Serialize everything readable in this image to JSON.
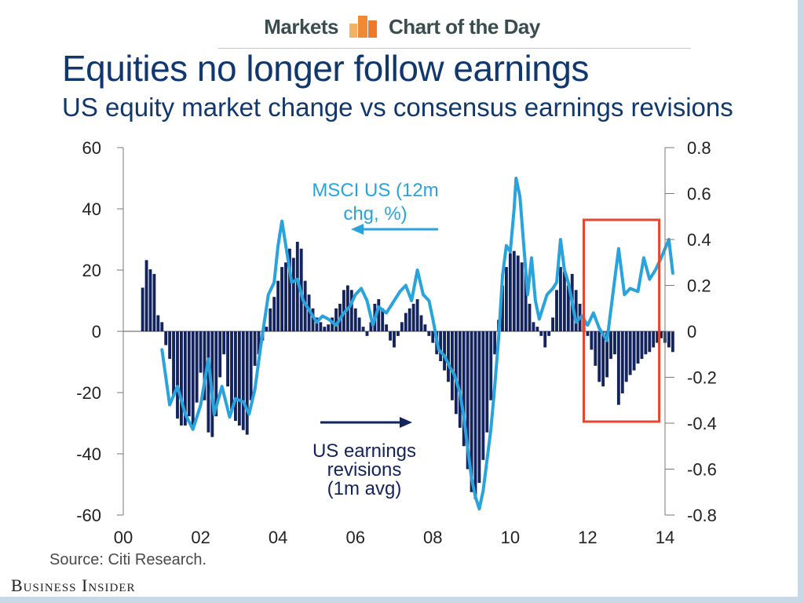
{
  "header": {
    "section": "Markets",
    "feature": "Chart of the Day",
    "title": "Equities no longer follow earnings",
    "subtitle": "US equity market change vs consensus earnings revisions"
  },
  "footer": {
    "source": "Source: Citi Research.",
    "brand": "Business Insider"
  },
  "colors": {
    "title": "#10376e",
    "line": "#29a3dc",
    "bars": "#12235e",
    "highlight": "#e8452e"
  },
  "chart_data": {
    "type": "line",
    "x_ticks": [
      "00",
      "02",
      "04",
      "06",
      "08",
      "10",
      "12",
      "14"
    ],
    "xlim": [
      2000,
      2014
    ],
    "y_left": {
      "ticks": [
        "60",
        "40",
        "20",
        "0",
        "-20",
        "-40",
        "-60"
      ],
      "lim": [
        -60,
        60
      ]
    },
    "y_right": {
      "ticks": [
        "0.8",
        "0.6",
        "0.4",
        "0.2",
        "0",
        "-0.2",
        "-0.4",
        "-0.6",
        "-0.8"
      ],
      "lim": [
        -0.8,
        0.8
      ]
    },
    "annotations": {
      "msci": [
        "MSCI US (12m",
        "chg, %)"
      ],
      "earnings": [
        "US earnings",
        "revisions",
        "(1m avg)"
      ]
    },
    "highlight_range": {
      "x": [
        2011.9,
        2013.85
      ]
    },
    "series": [
      {
        "name": "MSCI US (12m chg, %)",
        "axis": "left",
        "type": "line",
        "points": [
          [
            2001.0,
            -6
          ],
          [
            2001.2,
            -24
          ],
          [
            2001.4,
            -18
          ],
          [
            2001.6,
            -27
          ],
          [
            2001.8,
            -32
          ],
          [
            2002.0,
            -24
          ],
          [
            2002.2,
            -9
          ],
          [
            2002.35,
            -27
          ],
          [
            2002.55,
            -18
          ],
          [
            2002.75,
            -28
          ],
          [
            2002.9,
            -22
          ],
          [
            2003.1,
            -23
          ],
          [
            2003.25,
            -27
          ],
          [
            2003.4,
            -19
          ],
          [
            2003.55,
            -5
          ],
          [
            2003.75,
            12
          ],
          [
            2003.9,
            16
          ],
          [
            2004.0,
            28
          ],
          [
            2004.1,
            36
          ],
          [
            2004.2,
            28
          ],
          [
            2004.35,
            16
          ],
          [
            2004.5,
            17
          ],
          [
            2004.65,
            10
          ],
          [
            2004.85,
            6
          ],
          [
            2005.0,
            3
          ],
          [
            2005.15,
            5
          ],
          [
            2005.3,
            4
          ],
          [
            2005.5,
            2
          ],
          [
            2005.7,
            6
          ],
          [
            2005.85,
            8
          ],
          [
            2006.0,
            12
          ],
          [
            2006.15,
            14
          ],
          [
            2006.3,
            10
          ],
          [
            2006.45,
            2
          ],
          [
            2006.6,
            8
          ],
          [
            2006.8,
            6
          ],
          [
            2006.95,
            9
          ],
          [
            2007.15,
            13
          ],
          [
            2007.3,
            15
          ],
          [
            2007.45,
            10
          ],
          [
            2007.6,
            20
          ],
          [
            2007.75,
            12
          ],
          [
            2007.9,
            10
          ],
          [
            2008.0,
            4
          ],
          [
            2008.15,
            -6
          ],
          [
            2008.3,
            -8
          ],
          [
            2008.45,
            -12
          ],
          [
            2008.55,
            -14
          ],
          [
            2008.7,
            -20
          ],
          [
            2008.8,
            -28
          ],
          [
            2008.9,
            -38
          ],
          [
            2009.0,
            -48
          ],
          [
            2009.1,
            -54
          ],
          [
            2009.2,
            -58
          ],
          [
            2009.3,
            -52
          ],
          [
            2009.4,
            -42
          ],
          [
            2009.5,
            -32
          ],
          [
            2009.6,
            -18
          ],
          [
            2009.7,
            -2
          ],
          [
            2009.8,
            18
          ],
          [
            2009.9,
            28
          ],
          [
            2010.0,
            26
          ],
          [
            2010.1,
            40
          ],
          [
            2010.15,
            50
          ],
          [
            2010.25,
            44
          ],
          [
            2010.35,
            28
          ],
          [
            2010.45,
            12
          ],
          [
            2010.55,
            24
          ],
          [
            2010.65,
            10
          ],
          [
            2010.75,
            4
          ],
          [
            2010.85,
            8
          ],
          [
            2010.95,
            12
          ],
          [
            2011.1,
            14
          ],
          [
            2011.2,
            16
          ],
          [
            2011.3,
            30
          ],
          [
            2011.4,
            20
          ],
          [
            2011.5,
            16
          ],
          [
            2011.7,
            3
          ],
          [
            2011.85,
            5
          ],
          [
            2012.0,
            2
          ],
          [
            2012.15,
            6
          ],
          [
            2012.3,
            1
          ],
          [
            2012.5,
            -3
          ],
          [
            2012.6,
            7
          ],
          [
            2012.8,
            27
          ],
          [
            2012.95,
            12
          ],
          [
            2013.1,
            14
          ],
          [
            2013.3,
            13
          ],
          [
            2013.45,
            24
          ],
          [
            2013.6,
            17
          ],
          [
            2013.75,
            20
          ],
          [
            2013.9,
            24
          ],
          [
            2014.1,
            30
          ],
          [
            2014.2,
            19
          ]
        ]
      },
      {
        "name": "US earnings revisions (1m avg)",
        "axis": "right",
        "type": "bar",
        "points": [
          [
            2000.5,
            0.19
          ],
          [
            2000.6,
            0.31
          ],
          [
            2000.7,
            0.27
          ],
          [
            2000.8,
            0.25
          ],
          [
            2000.9,
            0.07
          ],
          [
            2001.0,
            0.04
          ],
          [
            2001.1,
            -0.06
          ],
          [
            2001.2,
            -0.12
          ],
          [
            2001.3,
            -0.28
          ],
          [
            2001.4,
            -0.38
          ],
          [
            2001.5,
            -0.41
          ],
          [
            2001.6,
            -0.41
          ],
          [
            2001.7,
            -0.37
          ],
          [
            2001.8,
            -0.41
          ],
          [
            2001.9,
            -0.31
          ],
          [
            2002.0,
            -0.18
          ],
          [
            2002.1,
            -0.3
          ],
          [
            2002.2,
            -0.44
          ],
          [
            2002.3,
            -0.46
          ],
          [
            2002.4,
            -0.37
          ],
          [
            2002.5,
            -0.2
          ],
          [
            2002.6,
            -0.1
          ],
          [
            2002.7,
            -0.24
          ],
          [
            2002.8,
            -0.34
          ],
          [
            2002.9,
            -0.39
          ],
          [
            2003.0,
            -0.41
          ],
          [
            2003.1,
            -0.43
          ],
          [
            2003.2,
            -0.45
          ],
          [
            2003.3,
            -0.3
          ],
          [
            2003.4,
            -0.15
          ],
          [
            2003.5,
            -0.1
          ],
          [
            2003.6,
            -0.04
          ],
          [
            2003.7,
            0.02
          ],
          [
            2003.8,
            0.1
          ],
          [
            2003.9,
            0.15
          ],
          [
            2004.0,
            0.22
          ],
          [
            2004.1,
            0.28
          ],
          [
            2004.2,
            0.3
          ],
          [
            2004.3,
            0.36
          ],
          [
            2004.4,
            0.32
          ],
          [
            2004.5,
            0.39
          ],
          [
            2004.6,
            0.36
          ],
          [
            2004.7,
            0.22
          ],
          [
            2004.8,
            0.16
          ],
          [
            2004.9,
            0.1
          ],
          [
            2005.0,
            0.06
          ],
          [
            2005.1,
            0.04
          ],
          [
            2005.2,
            0.02
          ],
          [
            2005.3,
            0.03
          ],
          [
            2005.4,
            0.06
          ],
          [
            2005.5,
            0.1
          ],
          [
            2005.6,
            0.12
          ],
          [
            2005.7,
            0.18
          ],
          [
            2005.8,
            0.2
          ],
          [
            2005.9,
            0.18
          ],
          [
            2006.0,
            0.1
          ],
          [
            2006.1,
            0.06
          ],
          [
            2006.2,
            0.02
          ],
          [
            2006.3,
            -0.02
          ],
          [
            2006.4,
            0.04
          ],
          [
            2006.5,
            0.12
          ],
          [
            2006.6,
            0.14
          ],
          [
            2006.7,
            0.1
          ],
          [
            2006.8,
            0.03
          ],
          [
            2006.9,
            -0.04
          ],
          [
            2007.0,
            -0.07
          ],
          [
            2007.1,
            -0.02
          ],
          [
            2007.2,
            0.04
          ],
          [
            2007.3,
            0.08
          ],
          [
            2007.4,
            0.1
          ],
          [
            2007.5,
            0.12
          ],
          [
            2007.6,
            0.14
          ],
          [
            2007.7,
            0.07
          ],
          [
            2007.8,
            0.03
          ],
          [
            2007.9,
            -0.02
          ],
          [
            2008.0,
            -0.05
          ],
          [
            2008.1,
            -0.1
          ],
          [
            2008.2,
            -0.13
          ],
          [
            2008.3,
            -0.17
          ],
          [
            2008.4,
            -0.22
          ],
          [
            2008.5,
            -0.3
          ],
          [
            2008.6,
            -0.36
          ],
          [
            2008.7,
            -0.42
          ],
          [
            2008.8,
            -0.5
          ],
          [
            2008.9,
            -0.6
          ],
          [
            2009.0,
            -0.7
          ],
          [
            2009.1,
            -0.73
          ],
          [
            2009.2,
            -0.66
          ],
          [
            2009.3,
            -0.56
          ],
          [
            2009.4,
            -0.44
          ],
          [
            2009.5,
            -0.3
          ],
          [
            2009.6,
            -0.1
          ],
          [
            2009.7,
            0.05
          ],
          [
            2009.8,
            0.2
          ],
          [
            2009.9,
            0.28
          ],
          [
            2010.0,
            0.34
          ],
          [
            2010.1,
            0.35
          ],
          [
            2010.2,
            0.33
          ],
          [
            2010.3,
            0.3
          ],
          [
            2010.4,
            0.26
          ],
          [
            2010.5,
            0.12
          ],
          [
            2010.6,
            0.04
          ],
          [
            2010.7,
            0.02
          ],
          [
            2010.8,
            -0.02
          ],
          [
            2010.9,
            -0.07
          ],
          [
            2011.0,
            -0.02
          ],
          [
            2011.1,
            0.06
          ],
          [
            2011.2,
            0.18
          ],
          [
            2011.3,
            0.28
          ],
          [
            2011.4,
            0.26
          ],
          [
            2011.5,
            0.2
          ],
          [
            2011.6,
            0.25
          ],
          [
            2011.7,
            0.18
          ],
          [
            2011.8,
            0.12
          ],
          [
            2011.9,
            0.05
          ],
          [
            2012.0,
            -0.02
          ],
          [
            2012.1,
            -0.08
          ],
          [
            2012.2,
            -0.15
          ],
          [
            2012.3,
            -0.22
          ],
          [
            2012.4,
            -0.24
          ],
          [
            2012.5,
            -0.2
          ],
          [
            2012.6,
            -0.12
          ],
          [
            2012.7,
            -0.1
          ],
          [
            2012.8,
            -0.32
          ],
          [
            2012.9,
            -0.27
          ],
          [
            2013.0,
            -0.22
          ],
          [
            2013.1,
            -0.19
          ],
          [
            2013.2,
            -0.17
          ],
          [
            2013.3,
            -0.14
          ],
          [
            2013.4,
            -0.12
          ],
          [
            2013.5,
            -0.1
          ],
          [
            2013.6,
            -0.09
          ],
          [
            2013.7,
            -0.07
          ],
          [
            2013.8,
            -0.05
          ],
          [
            2013.9,
            -0.03
          ],
          [
            2014.0,
            -0.05
          ],
          [
            2014.1,
            -0.07
          ],
          [
            2014.2,
            -0.09
          ]
        ]
      }
    ]
  }
}
